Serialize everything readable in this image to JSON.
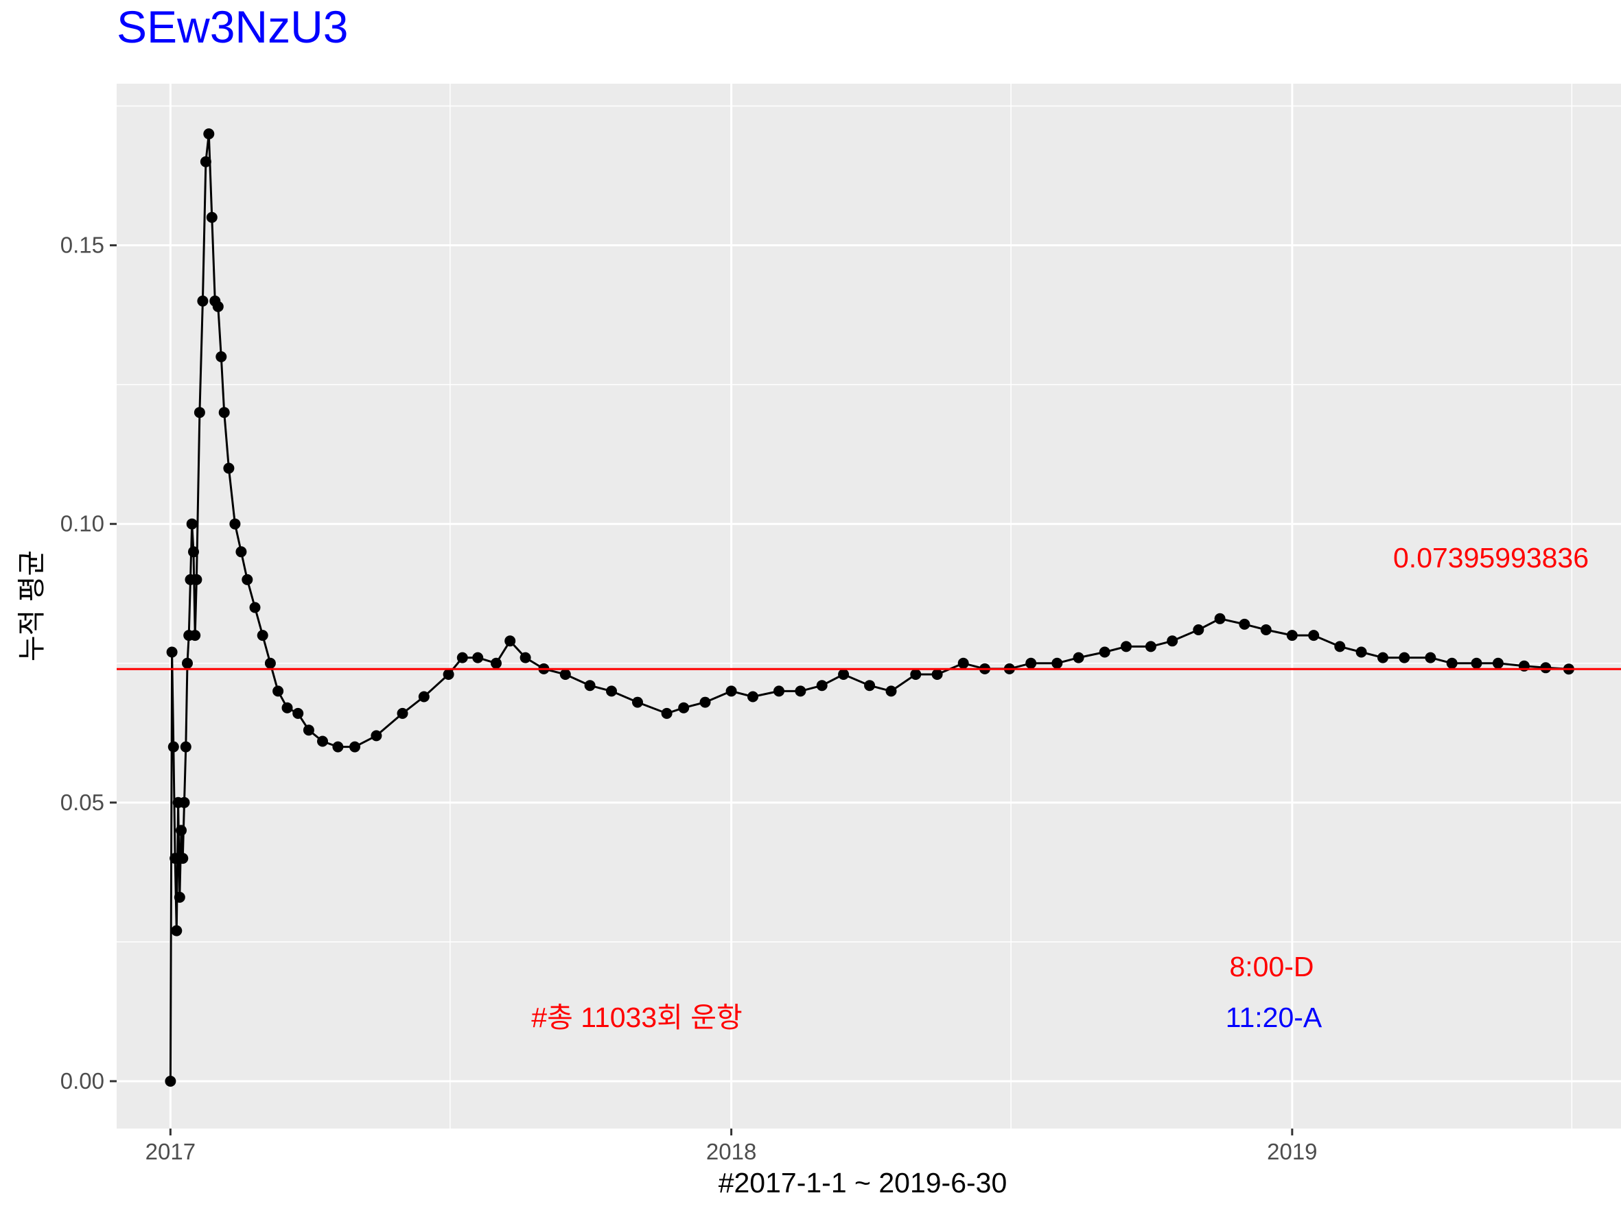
{
  "chart_data": {
    "type": "line",
    "title": "SEw3NzU3",
    "title_color": "#0000ff",
    "xlabel": "#2017-1-1 ~ 2019-6-30",
    "ylabel": "누적 평균",
    "x_ticks": [
      "2017",
      "2018",
      "2019"
    ],
    "y_ticks": [
      "0.00",
      "0.05",
      "0.10",
      "0.15"
    ],
    "xlim": [
      "2016-11-27",
      "2019-08-03"
    ],
    "ylim": [
      -0.0085,
      0.179
    ],
    "grid": true,
    "panel_background": "#ebebeb",
    "series_color": "#000000",
    "reference_line": {
      "value": 0.07395993836,
      "color": "#ff0000"
    },
    "annotations": [
      {
        "text": "0.07395993836",
        "color": "#ff0000"
      },
      {
        "text": "8:00-D",
        "color": "#ff0000"
      },
      {
        "text": "11:20-A",
        "color": "#0000ff"
      },
      {
        "text": "#총 11033회 운항",
        "color": "#ff0000"
      }
    ],
    "series": [
      {
        "x": [
          "2017-01-01",
          "2017-01-02",
          "2017-01-03",
          "2017-01-04",
          "2017-01-05",
          "2017-01-06",
          "2017-01-07",
          "2017-01-08",
          "2017-01-09",
          "2017-01-10",
          "2017-01-11",
          "2017-01-12",
          "2017-01-13",
          "2017-01-14",
          "2017-01-15",
          "2017-01-16",
          "2017-01-17",
          "2017-01-18",
          "2017-01-20",
          "2017-01-22",
          "2017-01-24",
          "2017-01-26",
          "2017-01-28",
          "2017-01-30",
          "2017-02-01",
          "2017-02-03",
          "2017-02-05",
          "2017-02-08",
          "2017-02-12",
          "2017-02-16",
          "2017-02-20",
          "2017-02-25",
          "2017-03-02",
          "2017-03-07",
          "2017-03-12",
          "2017-03-18",
          "2017-03-25",
          "2017-04-01",
          "2017-04-10",
          "2017-04-20",
          "2017-05-01",
          "2017-05-15",
          "2017-06-01",
          "2017-06-15",
          "2017-07-01",
          "2017-07-10",
          "2017-07-20",
          "2017-08-01",
          "2017-08-10",
          "2017-08-20",
          "2017-09-01",
          "2017-09-15",
          "2017-10-01",
          "2017-10-15",
          "2017-11-01",
          "2017-11-20",
          "2017-12-01",
          "2017-12-15",
          "2018-01-01",
          "2018-01-15",
          "2018-02-01",
          "2018-02-15",
          "2018-03-01",
          "2018-03-15",
          "2018-04-01",
          "2018-04-15",
          "2018-05-01",
          "2018-05-15",
          "2018-06-01",
          "2018-06-15",
          "2018-07-01",
          "2018-07-15",
          "2018-08-01",
          "2018-08-15",
          "2018-09-01",
          "2018-09-15",
          "2018-10-01",
          "2018-10-15",
          "2018-11-01",
          "2018-11-15",
          "2018-12-01",
          "2018-12-15",
          "2019-01-01",
          "2019-01-15",
          "2019-02-01",
          "2019-02-15",
          "2019-03-01",
          "2019-03-15",
          "2019-04-01",
          "2019-04-15",
          "2019-05-01",
          "2019-05-15",
          "2019-06-01",
          "2019-06-15",
          "2019-06-30"
        ],
        "y": [
          0.0,
          0.077,
          0.06,
          0.04,
          0.027,
          0.05,
          0.033,
          0.045,
          0.04,
          0.05,
          0.06,
          0.075,
          0.08,
          0.09,
          0.1,
          0.095,
          0.08,
          0.09,
          0.12,
          0.14,
          0.165,
          0.17,
          0.155,
          0.14,
          0.139,
          0.13,
          0.12,
          0.11,
          0.1,
          0.095,
          0.09,
          0.085,
          0.08,
          0.075,
          0.07,
          0.067,
          0.066,
          0.063,
          0.061,
          0.06,
          0.06,
          0.062,
          0.066,
          0.069,
          0.073,
          0.076,
          0.076,
          0.075,
          0.079,
          0.076,
          0.074,
          0.073,
          0.071,
          0.07,
          0.068,
          0.066,
          0.067,
          0.068,
          0.07,
          0.069,
          0.07,
          0.07,
          0.071,
          0.073,
          0.071,
          0.07,
          0.073,
          0.073,
          0.075,
          0.074,
          0.074,
          0.075,
          0.075,
          0.076,
          0.077,
          0.078,
          0.078,
          0.079,
          0.081,
          0.083,
          0.082,
          0.081,
          0.08,
          0.08,
          0.078,
          0.077,
          0.076,
          0.076,
          0.076,
          0.075,
          0.075,
          0.075,
          0.0745,
          0.0742,
          0.07396
        ]
      }
    ]
  }
}
